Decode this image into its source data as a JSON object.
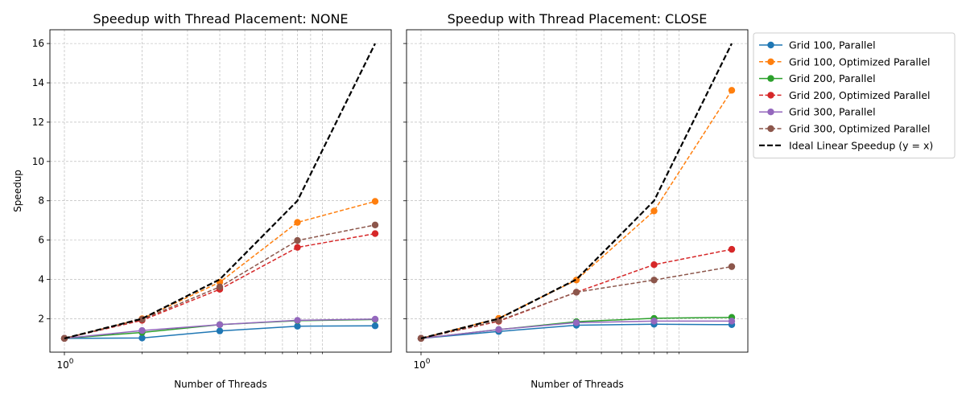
{
  "chart_data": [
    {
      "type": "line",
      "title": "Speedup with Thread Placement: NONE",
      "xlabel": "Number of Threads",
      "ylabel": "Speedup",
      "xscale": "log",
      "x": [
        1,
        2,
        4,
        8,
        16
      ],
      "x_tick_labels": [
        {
          "value": 1,
          "base": "10",
          "exp": "0"
        }
      ],
      "ylim": [
        0.3,
        16.7
      ],
      "y_ticks": [
        2,
        4,
        6,
        8,
        10,
        12,
        14,
        16
      ],
      "grid": true,
      "series": [
        {
          "name": "Grid 100, Parallel",
          "color": "#1f77b4",
          "dash": "solid",
          "values": [
            1.0,
            1.02,
            1.38,
            1.62,
            1.64
          ]
        },
        {
          "name": "Grid 100, Optimized Parallel",
          "color": "#ff7f0e",
          "dash": "dashed",
          "values": [
            1.0,
            2.0,
            3.86,
            6.9,
            7.97
          ]
        },
        {
          "name": "Grid 200, Parallel",
          "color": "#2ca02c",
          "dash": "solid",
          "values": [
            1.0,
            1.3,
            1.7,
            1.9,
            1.96
          ]
        },
        {
          "name": "Grid 200, Optimized Parallel",
          "color": "#d62728",
          "dash": "dashed",
          "values": [
            1.0,
            1.92,
            3.5,
            5.63,
            6.33
          ]
        },
        {
          "name": "Grid 300, Parallel",
          "color": "#9467bd",
          "dash": "solid",
          "values": [
            1.0,
            1.4,
            1.7,
            1.92,
            1.98
          ]
        },
        {
          "name": "Grid 300, Optimized Parallel",
          "color": "#8c564b",
          "dash": "dashed",
          "values": [
            1.0,
            1.97,
            3.62,
            5.98,
            6.77
          ]
        },
        {
          "name": "Ideal Linear Speedup (y = x)",
          "color": "#000000",
          "dash": "ideal",
          "values": [
            1,
            2,
            4,
            8,
            16
          ]
        }
      ]
    },
    {
      "type": "line",
      "title": "Speedup with Thread Placement: CLOSE",
      "xlabel": "Number of Threads",
      "ylabel": "",
      "xscale": "log",
      "x": [
        1,
        2,
        4,
        8,
        16
      ],
      "x_tick_labels": [
        {
          "value": 1,
          "base": "10",
          "exp": "0"
        }
      ],
      "ylim": [
        0.3,
        16.7
      ],
      "y_ticks": [
        2,
        4,
        6,
        8,
        10,
        12,
        14,
        16
      ],
      "grid": true,
      "legend": "outside-right",
      "series": [
        {
          "name": "Grid 100, Parallel",
          "color": "#1f77b4",
          "dash": "solid",
          "values": [
            1.0,
            1.35,
            1.67,
            1.72,
            1.7
          ]
        },
        {
          "name": "Grid 100, Optimized Parallel",
          "color": "#ff7f0e",
          "dash": "dashed",
          "values": [
            1.0,
            2.02,
            3.97,
            7.48,
            13.62
          ]
        },
        {
          "name": "Grid 200, Parallel",
          "color": "#2ca02c",
          "dash": "solid",
          "values": [
            1.0,
            1.45,
            1.85,
            2.02,
            2.07
          ]
        },
        {
          "name": "Grid 200, Optimized Parallel",
          "color": "#d62728",
          "dash": "dashed",
          "values": [
            1.0,
            1.87,
            3.35,
            4.75,
            5.53
          ]
        },
        {
          "name": "Grid 300, Parallel",
          "color": "#9467bd",
          "dash": "solid",
          "values": [
            1.0,
            1.45,
            1.8,
            1.88,
            1.88
          ]
        },
        {
          "name": "Grid 300, Optimized Parallel",
          "color": "#8c564b",
          "dash": "dashed",
          "values": [
            1.0,
            1.9,
            3.35,
            3.97,
            4.65
          ]
        },
        {
          "name": "Ideal Linear Speedup (y = x)",
          "color": "#000000",
          "dash": "ideal",
          "values": [
            1,
            2,
            4,
            8,
            16
          ]
        }
      ]
    }
  ]
}
